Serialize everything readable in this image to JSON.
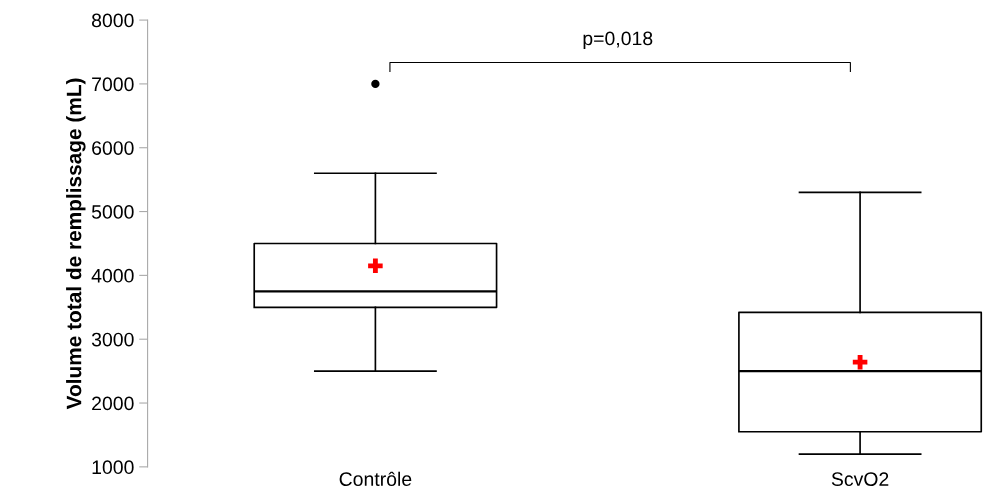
{
  "chart_data": {
    "type": "box",
    "ylabel": "Volume total de remplissage (mL)",
    "categories": [
      "Contrôle",
      "ScvO2"
    ],
    "boxes": [
      {
        "low": 2500,
        "q1": 3500,
        "median": 3750,
        "q3": 4500,
        "high": 5600,
        "mean": 4150,
        "outliers": [
          7000
        ]
      },
      {
        "low": 1200,
        "q1": 1550,
        "median": 2500,
        "q3": 3420,
        "high": 5300,
        "mean": 2640
      }
    ],
    "ylim": [
      1000,
      8000
    ],
    "yticks": [
      1000,
      2000,
      3000,
      4000,
      5000,
      6000,
      7000,
      8000
    ],
    "grid": false,
    "legend": false,
    "annotations": [
      "p=0,018"
    ]
  }
}
